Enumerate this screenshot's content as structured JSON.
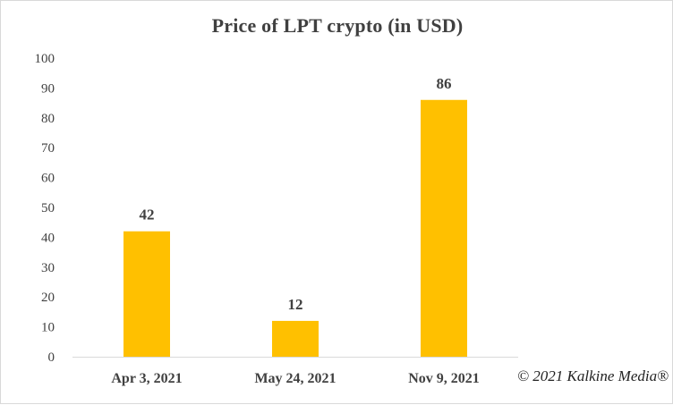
{
  "chart_data": {
    "type": "bar",
    "title": "Price of LPT crypto (in USD)",
    "categories": [
      "Apr 3, 2021",
      "May 24, 2021",
      "Nov 9, 2021"
    ],
    "values": [
      42,
      12,
      86
    ],
    "data_labels": [
      "42",
      "12",
      "86"
    ],
    "yticks": [
      "0",
      "10",
      "20",
      "30",
      "40",
      "50",
      "60",
      "70",
      "80",
      "90",
      "100"
    ],
    "ylim": [
      0,
      100
    ],
    "xlabel": "",
    "ylabel": "",
    "grid": false,
    "legend": "none",
    "bar_color": "#FFC000"
  },
  "watermark": "© 2021 Kalkine Media®"
}
